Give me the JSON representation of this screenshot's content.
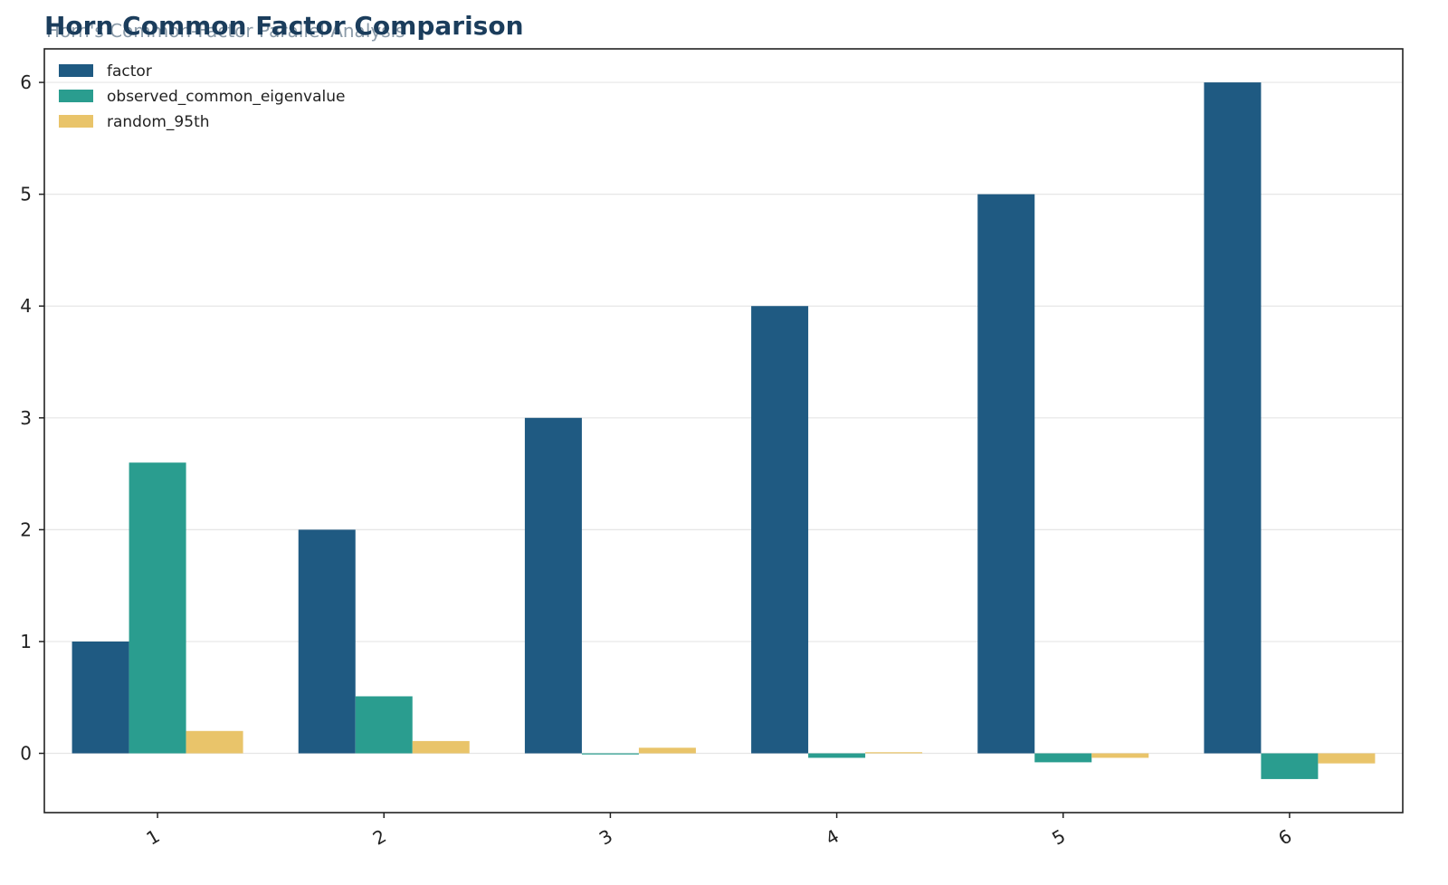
{
  "header": {
    "title": "Horn Common Factor Comparison",
    "subtitle": "Horn's Common-Factor Parallel Analysis"
  },
  "colors": {
    "factor": "#1f5a82",
    "observed_common_eigenvalue": "#2a9d8f",
    "random_95th": "#e9c46a",
    "title": "#1b3d5c"
  },
  "chart_data": {
    "type": "bar",
    "title": "Horn Common Factor Comparison",
    "subtitle": "Horn's Common-Factor Parallel Analysis",
    "categories": [
      "1",
      "2",
      "3",
      "4",
      "5",
      "6"
    ],
    "series": [
      {
        "name": "factor",
        "values": [
          1,
          2,
          3,
          4,
          5,
          6
        ]
      },
      {
        "name": "observed_common_eigenvalue",
        "values": [
          2.6,
          0.51,
          -0.01,
          -0.04,
          -0.08,
          -0.23
        ]
      },
      {
        "name": "random_95th",
        "values": [
          0.2,
          0.11,
          0.05,
          0.01,
          -0.04,
          -0.09
        ]
      }
    ],
    "yticks": [
      "0",
      "1",
      "2",
      "3",
      "4",
      "5",
      "6"
    ],
    "ylim": [
      -0.53,
      6.3
    ],
    "xlabel": "",
    "ylabel": "",
    "grid": "horizontal",
    "legend": "top-left"
  }
}
